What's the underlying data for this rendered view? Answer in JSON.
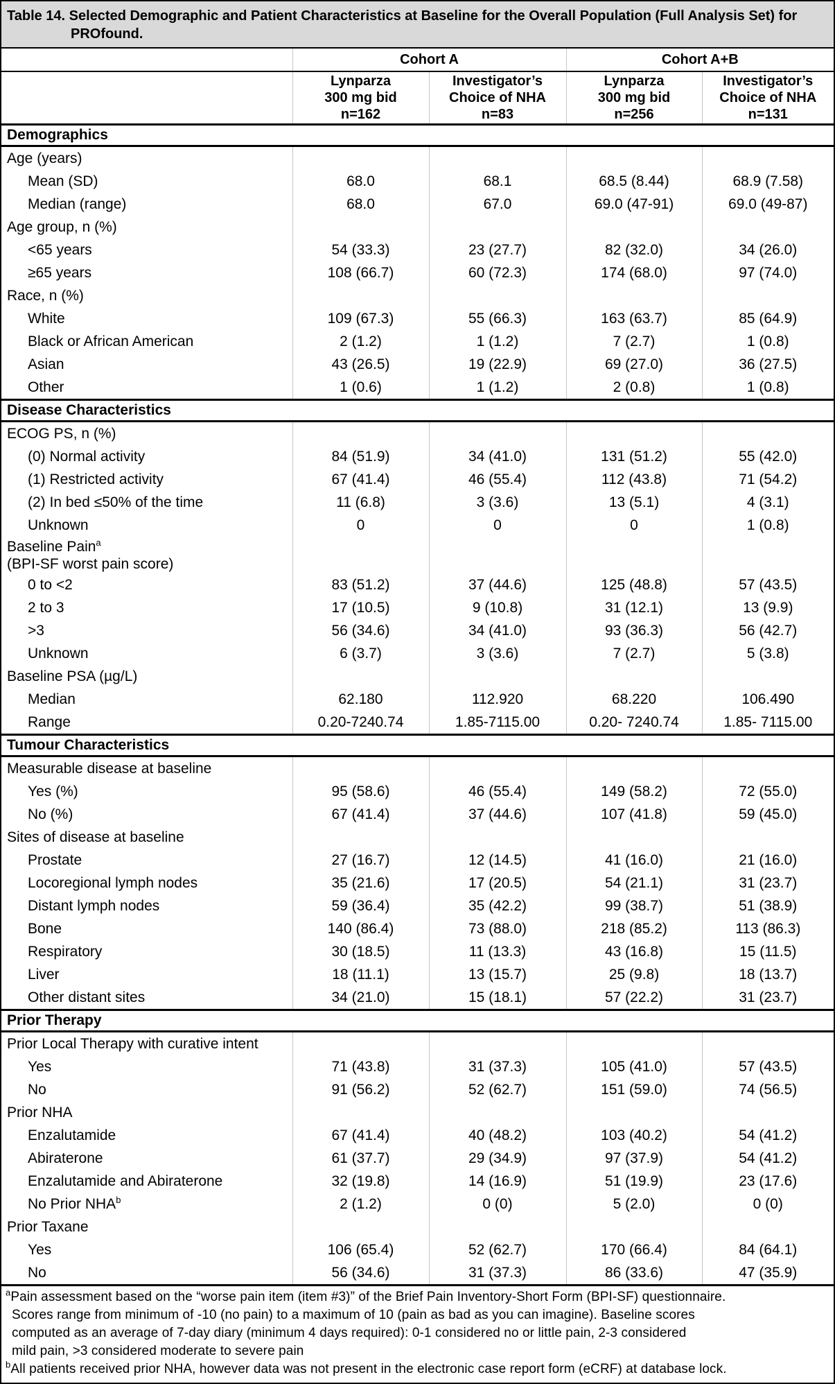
{
  "title": "Table 14. Selected Demographic and Patient Characteristics at Baseline for the Overall Population (Full Analysis Set) for PROfound.",
  "colors": {
    "title_bg": "#d9d9d9",
    "border": "#000000",
    "grid_light": "#c6c6c6"
  },
  "header": {
    "groups": [
      {
        "label": "Cohort A"
      },
      {
        "label": "Cohort A+B"
      }
    ],
    "columns": [
      {
        "lines": [
          "Lynparza",
          "300 mg bid",
          "n=162"
        ]
      },
      {
        "lines": [
          "Investigator’s",
          "Choice of NHA",
          "n=83"
        ]
      },
      {
        "lines": [
          "Lynparza",
          "300 mg bid",
          "n=256"
        ]
      },
      {
        "lines": [
          "Investigator’s",
          "Choice of NHA",
          "n=131"
        ]
      }
    ]
  },
  "sections": [
    {
      "heading": "Demographics",
      "rows": [
        {
          "label": "Age (years)",
          "indent": 0,
          "values": [
            "",
            "",
            "",
            ""
          ]
        },
        {
          "label": "Mean (SD)",
          "indent": 1,
          "values": [
            "68.0",
            "68.1",
            "68.5 (8.44)",
            "68.9 (7.58)"
          ]
        },
        {
          "label": "Median (range)",
          "indent": 1,
          "values": [
            "68.0",
            "67.0",
            "69.0 (47-91)",
            "69.0 (49-87)"
          ]
        },
        {
          "label": "Age group, n (%)",
          "indent": 0,
          "values": [
            "",
            "",
            "",
            ""
          ]
        },
        {
          "label": "<65 years",
          "indent": 1,
          "values": [
            "54 (33.3)",
            "23 (27.7)",
            "82 (32.0)",
            "34 (26.0)"
          ]
        },
        {
          "label": "≥65 years",
          "indent": 1,
          "values": [
            "108 (66.7)",
            "60 (72.3)",
            "174 (68.0)",
            "97 (74.0)"
          ]
        },
        {
          "label": "Race, n (%)",
          "indent": 0,
          "values": [
            "",
            "",
            "",
            ""
          ]
        },
        {
          "label": "White",
          "indent": 1,
          "values": [
            "109 (67.3)",
            "55 (66.3)",
            "163 (63.7)",
            "85 (64.9)"
          ]
        },
        {
          "label": "Black or African American",
          "indent": 1,
          "values": [
            "2 (1.2)",
            "1 (1.2)",
            "7 (2.7)",
            "1 (0.8)"
          ]
        },
        {
          "label": "Asian",
          "indent": 1,
          "values": [
            "43 (26.5)",
            "19 (22.9)",
            "69 (27.0)",
            "36 (27.5)"
          ]
        },
        {
          "label": "Other",
          "indent": 1,
          "values": [
            "1 (0.6)",
            "1 (1.2)",
            "2 (0.8)",
            "1 (0.8)"
          ]
        }
      ]
    },
    {
      "heading": "Disease Characteristics",
      "rows": [
        {
          "label": "ECOG PS, n (%)",
          "indent": 0,
          "values": [
            "",
            "",
            "",
            ""
          ]
        },
        {
          "label": "(0) Normal activity",
          "indent": 1,
          "values": [
            "84 (51.9)",
            "34 (41.0)",
            "131 (51.2)",
            "55 (42.0)"
          ]
        },
        {
          "label": "(1) Restricted activity",
          "indent": 1,
          "values": [
            "67 (41.4)",
            "46 (55.4)",
            "112 (43.8)",
            "71 (54.2)"
          ]
        },
        {
          "label": "(2) In bed ≤50% of the time",
          "indent": 1,
          "values": [
            "11 (6.8)",
            "3 (3.6)",
            "13 (5.1)",
            "4 (3.1)"
          ]
        },
        {
          "label": "Unknown",
          "indent": 1,
          "values": [
            "0",
            "0",
            "0",
            "1 (0.8)"
          ]
        },
        {
          "label": "Baseline Pain",
          "sup": "a",
          "label2": "(BPI-SF worst pain score)",
          "indent": 0,
          "values": [
            "",
            "",
            "",
            ""
          ]
        },
        {
          "label": "0 to <2",
          "indent": 1,
          "values": [
            "83 (51.2)",
            "37 (44.6)",
            "125 (48.8)",
            "57 (43.5)"
          ]
        },
        {
          "label": "2 to 3",
          "indent": 1,
          "values": [
            "17 (10.5)",
            "9 (10.8)",
            "31 (12.1)",
            "13 (9.9)"
          ]
        },
        {
          "label": ">3",
          "indent": 1,
          "values": [
            "56 (34.6)",
            "34 (41.0)",
            "93 (36.3)",
            "56 (42.7)"
          ]
        },
        {
          "label": "Unknown",
          "indent": 1,
          "values": [
            "6 (3.7)",
            "3 (3.6)",
            "7 (2.7)",
            "5 (3.8)"
          ]
        },
        {
          "label": "Baseline PSA (µg/L)",
          "indent": 0,
          "values": [
            "",
            "",
            "",
            ""
          ]
        },
        {
          "label": "Median",
          "indent": 1,
          "values": [
            "62.180",
            "112.920",
            "68.220",
            "106.490"
          ]
        },
        {
          "label": "Range",
          "indent": 1,
          "values": [
            "0.20-7240.74",
            "1.85-7115.00",
            "0.20- 7240.74",
            "1.85- 7115.00"
          ]
        }
      ]
    },
    {
      "heading": "Tumour Characteristics",
      "rows": [
        {
          "label": "Measurable disease at baseline",
          "indent": 0,
          "values": [
            "",
            "",
            "",
            ""
          ]
        },
        {
          "label": "Yes (%)",
          "indent": 1,
          "values": [
            "95 (58.6)",
            "46 (55.4)",
            "149 (58.2)",
            "72 (55.0)"
          ]
        },
        {
          "label": "No (%)",
          "indent": 1,
          "values": [
            "67 (41.4)",
            "37 (44.6)",
            "107 (41.8)",
            "59 (45.0)"
          ]
        },
        {
          "label": "Sites of disease at baseline",
          "indent": 0,
          "values": [
            "",
            "",
            "",
            ""
          ]
        },
        {
          "label": "Prostate",
          "indent": 1,
          "values": [
            "27 (16.7)",
            "12 (14.5)",
            "41 (16.0)",
            "21 (16.0)"
          ]
        },
        {
          "label": "Locoregional lymph nodes",
          "indent": 1,
          "values": [
            "35 (21.6)",
            "17 (20.5)",
            "54 (21.1)",
            "31 (23.7)"
          ]
        },
        {
          "label": "Distant lymph nodes",
          "indent": 1,
          "values": [
            "59 (36.4)",
            "35 (42.2)",
            "99 (38.7)",
            "51 (38.9)"
          ]
        },
        {
          "label": "Bone",
          "indent": 1,
          "values": [
            "140 (86.4)",
            "73 (88.0)",
            "218 (85.2)",
            "113 (86.3)"
          ]
        },
        {
          "label": "Respiratory",
          "indent": 1,
          "values": [
            "30 (18.5)",
            "11 (13.3)",
            "43 (16.8)",
            "15 (11.5)"
          ]
        },
        {
          "label": "Liver",
          "indent": 1,
          "values": [
            "18 (11.1)",
            "13 (15.7)",
            "25 (9.8)",
            "18 (13.7)"
          ]
        },
        {
          "label": "Other distant sites",
          "indent": 1,
          "values": [
            "34 (21.0)",
            "15 (18.1)",
            "57 (22.2)",
            "31 (23.7)"
          ]
        }
      ]
    },
    {
      "heading": "Prior Therapy",
      "rows": [
        {
          "label": "Prior Local Therapy with curative intent",
          "indent": 0,
          "values": [
            "",
            "",
            "",
            ""
          ]
        },
        {
          "label": "Yes",
          "indent": 1,
          "values": [
            "71 (43.8)",
            "31 (37.3)",
            "105 (41.0)",
            "57 (43.5)"
          ]
        },
        {
          "label": "No",
          "indent": 1,
          "values": [
            "91 (56.2)",
            "52 (62.7)",
            "151 (59.0)",
            "74 (56.5)"
          ]
        },
        {
          "label": "Prior NHA",
          "indent": 0,
          "values": [
            "",
            "",
            "",
            ""
          ]
        },
        {
          "label": "Enzalutamide",
          "indent": 1,
          "values": [
            "67 (41.4)",
            "40 (48.2)",
            "103 (40.2)",
            "54 (41.2)"
          ]
        },
        {
          "label": "Abiraterone",
          "indent": 1,
          "values": [
            "61 (37.7)",
            "29 (34.9)",
            "97 (37.9)",
            "54 (41.2)"
          ]
        },
        {
          "label": "Enzalutamide and Abiraterone",
          "indent": 1,
          "values": [
            "32 (19.8)",
            "14 (16.9)",
            "51 (19.9)",
            "23 (17.6)"
          ]
        },
        {
          "label": "No Prior NHA",
          "sup": "b",
          "indent": 1,
          "values": [
            "2 (1.2)",
            "0 (0)",
            "5 (2.0)",
            "0 (0)"
          ]
        },
        {
          "label": "Prior Taxane",
          "indent": 0,
          "values": [
            "",
            "",
            "",
            ""
          ]
        },
        {
          "label": "Yes",
          "indent": 1,
          "values": [
            "106 (65.4)",
            "52 (62.7)",
            "170 (66.4)",
            "84 (64.1)"
          ]
        },
        {
          "label": "No",
          "indent": 1,
          "values": [
            "56 (34.6)",
            "31 (37.3)",
            "86 (33.6)",
            "47 (35.9)"
          ]
        }
      ]
    }
  ],
  "footnotes": [
    {
      "marker": "a",
      "lines": [
        "Pain assessment based on the “worse pain item (item #3)” of the Brief Pain Inventory-Short Form (BPI-SF) questionnaire.",
        "Scores range from minimum of -10 (no pain) to a maximum of 10 (pain as bad as you can imagine). Baseline scores",
        "computed as an average of 7-day diary (minimum 4 days required): 0-1 considered no or little pain, 2-3 considered",
        "mild pain, >3 considered moderate to severe pain"
      ]
    },
    {
      "marker": "b",
      "lines": [
        "All patients received prior NHA, however data was not present in the electronic case report form (eCRF) at database lock."
      ]
    }
  ]
}
